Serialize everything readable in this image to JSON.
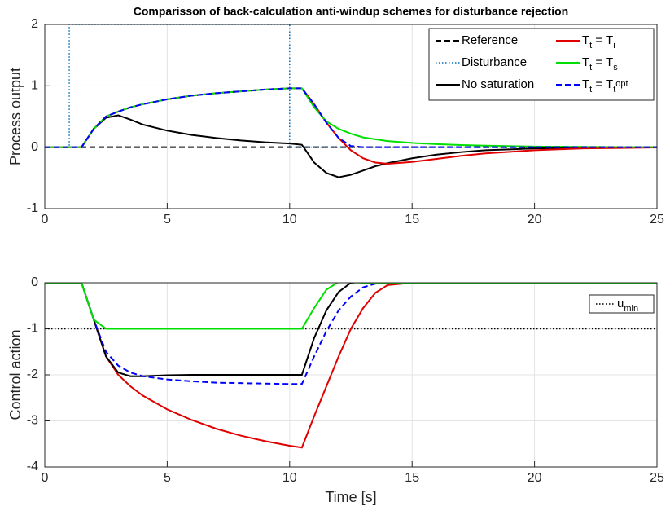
{
  "chart_data": [
    {
      "type": "line",
      "title": "Comparisson of back-calculation anti-windup schemes for disturbance rejection",
      "ylabel": "Process output",
      "xlim": [
        0,
        25
      ],
      "ylim": [
        -1,
        2
      ],
      "xticks": [
        0,
        5,
        10,
        15,
        20,
        25
      ],
      "yticks": [
        -1,
        0,
        1,
        2
      ],
      "grid": true,
      "legend": "upper right",
      "x": [
        0,
        1,
        1.5,
        2,
        2.5,
        3,
        3.5,
        4,
        5,
        6,
        7,
        8,
        9,
        10,
        10.5,
        11,
        11.5,
        12,
        12.5,
        13,
        13.5,
        14,
        15,
        16,
        17,
        18,
        20,
        22,
        25
      ],
      "series": [
        {
          "name": "Reference",
          "color": "#000000",
          "style": "--",
          "x": [
            0,
            25
          ],
          "values": [
            0,
            0
          ]
        },
        {
          "name": "Disturbance",
          "color": "#0072bd",
          "style": ":",
          "x": [
            0,
            1,
            1,
            10,
            10,
            25
          ],
          "values": [
            0,
            0,
            2,
            2,
            0,
            0
          ]
        },
        {
          "name": "No saturation",
          "color": "#000000",
          "style": "-",
          "values": [
            0,
            0,
            0,
            0.3,
            0.48,
            0.52,
            0.45,
            0.37,
            0.27,
            0.2,
            0.15,
            0.11,
            0.08,
            0.06,
            0.04,
            -0.25,
            -0.42,
            -0.49,
            -0.45,
            -0.38,
            -0.31,
            -0.26,
            -0.18,
            -0.12,
            -0.08,
            -0.05,
            -0.02,
            -0.01,
            0
          ]
        },
        {
          "name": "T_t = T_i",
          "color": "#e00000",
          "style": "-",
          "values": [
            0,
            0,
            0,
            0.3,
            0.5,
            0.58,
            0.65,
            0.7,
            0.78,
            0.84,
            0.88,
            0.91,
            0.94,
            0.96,
            0.96,
            0.7,
            0.4,
            0.15,
            -0.05,
            -0.18,
            -0.25,
            -0.27,
            -0.24,
            -0.19,
            -0.14,
            -0.1,
            -0.05,
            -0.02,
            -0.005
          ]
        },
        {
          "name": "T_t = T_s",
          "color": "#00e000",
          "style": "-",
          "values": [
            0,
            0,
            0,
            0.3,
            0.5,
            0.58,
            0.65,
            0.7,
            0.78,
            0.84,
            0.88,
            0.91,
            0.94,
            0.96,
            0.96,
            0.65,
            0.42,
            0.3,
            0.22,
            0.16,
            0.13,
            0.1,
            0.07,
            0.05,
            0.035,
            0.025,
            0.01,
            0.005,
            0
          ]
        },
        {
          "name": "T_t = T_t^{opt}",
          "color": "#0000ff",
          "style": "--",
          "values": [
            0,
            0,
            0,
            0.3,
            0.5,
            0.58,
            0.65,
            0.7,
            0.78,
            0.84,
            0.88,
            0.91,
            0.94,
            0.96,
            0.96,
            0.7,
            0.4,
            0.15,
            0.02,
            0,
            0,
            0,
            0,
            0,
            0,
            0,
            0,
            0,
            0
          ]
        }
      ]
    },
    {
      "type": "line",
      "xlabel": "Time [s]",
      "ylabel": "Control action",
      "xlim": [
        0,
        25
      ],
      "ylim": [
        -4,
        0
      ],
      "xticks": [
        0,
        5,
        10,
        15,
        20,
        25
      ],
      "yticks": [
        -4,
        -3,
        -2,
        -1,
        0
      ],
      "grid": true,
      "legend": "upper right",
      "x": [
        0,
        1,
        1.5,
        2,
        2.5,
        3,
        3.5,
        4,
        5,
        6,
        7,
        8,
        9,
        10,
        10.5,
        11,
        11.5,
        12,
        12.5,
        13,
        13.5,
        14,
        15,
        16,
        17,
        18,
        20,
        22,
        25
      ],
      "series": [
        {
          "name": "u_{min}",
          "color": "#000000",
          "style": ":",
          "x": [
            0,
            25
          ],
          "values": [
            -1,
            -1
          ]
        },
        {
          "color": "#e00000",
          "style": "-",
          "values": [
            0,
            0,
            0,
            -0.8,
            -1.6,
            -2.0,
            -2.25,
            -2.45,
            -2.75,
            -2.98,
            -3.17,
            -3.32,
            -3.44,
            -3.54,
            -3.58,
            -2.9,
            -2.25,
            -1.6,
            -1.0,
            -0.55,
            -0.22,
            -0.05,
            0,
            0,
            0,
            0,
            0,
            0,
            0
          ]
        },
        {
          "color": "#000000",
          "style": "-",
          "values": [
            0,
            0,
            0,
            -0.8,
            -1.6,
            -1.95,
            -2.03,
            -2.03,
            -2.01,
            -2.0,
            -2.0,
            -2.0,
            -2.0,
            -2.0,
            -2.0,
            -1.2,
            -0.6,
            -0.2,
            0,
            0.02,
            0,
            0,
            0,
            0,
            0,
            0,
            0,
            0,
            0
          ]
        },
        {
          "color": "#0000ff",
          "style": "--",
          "values": [
            0,
            0,
            0,
            -0.8,
            -1.5,
            -1.8,
            -1.95,
            -2.03,
            -2.1,
            -2.14,
            -2.17,
            -2.18,
            -2.19,
            -2.2,
            -2.2,
            -1.6,
            -1.05,
            -0.6,
            -0.3,
            -0.1,
            -0.02,
            0,
            0,
            0,
            0,
            0,
            0,
            0,
            0
          ]
        },
        {
          "color": "#00e000",
          "style": "-",
          "values": [
            0,
            0,
            0,
            -0.8,
            -1.0,
            -1.0,
            -1.0,
            -1.0,
            -1.0,
            -1.0,
            -1.0,
            -1.0,
            -1.0,
            -1.0,
            -1.0,
            -0.55,
            -0.15,
            0.02,
            0.01,
            0,
            0,
            0,
            0,
            0,
            0,
            0,
            0,
            0,
            0
          ]
        }
      ]
    }
  ]
}
